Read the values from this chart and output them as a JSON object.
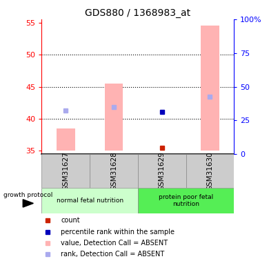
{
  "title": "GDS880 / 1368983_at",
  "samples": [
    "GSM31627",
    "GSM31628",
    "GSM31629",
    "GSM31630"
  ],
  "ylim_left": [
    34.5,
    55.5
  ],
  "ylim_right": [
    0,
    100
  ],
  "yticks_left": [
    35,
    40,
    45,
    50,
    55
  ],
  "yticks_right": [
    0,
    25,
    50,
    75,
    100
  ],
  "pink_bar_bottom": 35.0,
  "pink_bar_values": [
    38.5,
    45.5,
    35.0,
    54.5
  ],
  "pink_bar_color": "#ffb3b3",
  "light_blue_square_values": [
    41.3,
    41.8,
    null,
    43.5
  ],
  "light_blue_square_color": "#aaaaee",
  "dark_blue_square_values": [
    null,
    null,
    41.1,
    null
  ],
  "dark_blue_square_color": "#0000bb",
  "red_square_values": [
    null,
    null,
    35.5,
    null
  ],
  "red_square_color": "#cc2200",
  "sample_row_color": "#cccccc",
  "group1_color": "#ccffcc",
  "group2_color": "#55ee55",
  "growth_protocol_label": "growth protocol",
  "legend_items": [
    {
      "label": "count",
      "color": "#cc2200"
    },
    {
      "label": "percentile rank within the sample",
      "color": "#0000bb"
    },
    {
      "label": "value, Detection Call = ABSENT",
      "color": "#ffb3b3"
    },
    {
      "label": "rank, Detection Call = ABSENT",
      "color": "#aaaaee"
    }
  ]
}
